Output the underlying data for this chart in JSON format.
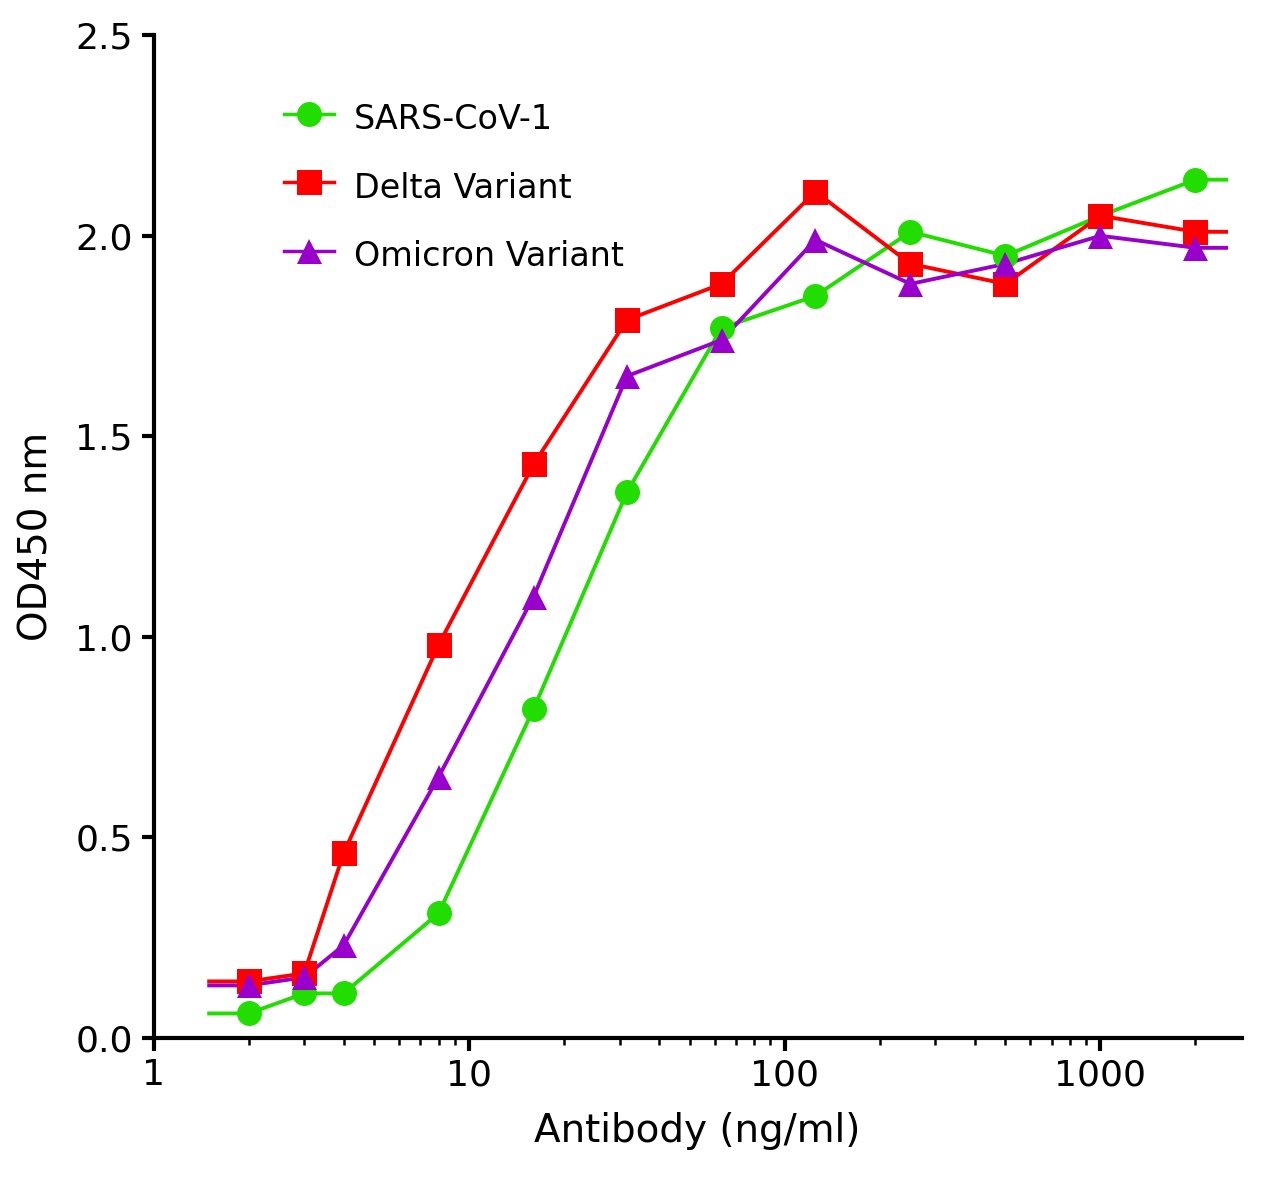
{
  "title": "",
  "xlabel": "Antibody (ng/ml)",
  "ylabel": "OD450 nm",
  "ylim": [
    0,
    2.5
  ],
  "yticks": [
    0.0,
    0.5,
    1.0,
    1.5,
    2.0,
    2.5
  ],
  "xticks": [
    1,
    10,
    100,
    1000
  ],
  "background_color": "#ffffff",
  "series": [
    {
      "label": "SARS-CoV-1",
      "color": "#22dd00",
      "marker": "o",
      "markersize": 18,
      "x": [
        2,
        3,
        4,
        8,
        16,
        31.6,
        63,
        125,
        250,
        500,
        1000,
        2000
      ],
      "y": [
        0.06,
        0.11,
        0.11,
        0.31,
        0.82,
        1.36,
        1.77,
        1.85,
        2.01,
        1.95,
        2.05,
        2.14
      ]
    },
    {
      "label": "Delta Variant",
      "color": "#ff0000",
      "marker": "s",
      "markersize": 18,
      "x": [
        2,
        3,
        4,
        8,
        16,
        31.6,
        63,
        125,
        250,
        500,
        1000,
        2000
      ],
      "y": [
        0.14,
        0.16,
        0.46,
        0.98,
        1.43,
        1.79,
        1.88,
        2.11,
        1.93,
        1.88,
        2.05,
        2.01
      ]
    },
    {
      "label": "Omicron Variant",
      "color": "#9900cc",
      "marker": "^",
      "markersize": 18,
      "x": [
        2,
        3,
        4,
        8,
        16,
        31.6,
        63,
        125,
        250,
        500,
        1000,
        2000
      ],
      "y": [
        0.13,
        0.15,
        0.23,
        0.65,
        1.1,
        1.65,
        1.74,
        1.99,
        1.88,
        1.93,
        2.0,
        1.97
      ]
    }
  ]
}
